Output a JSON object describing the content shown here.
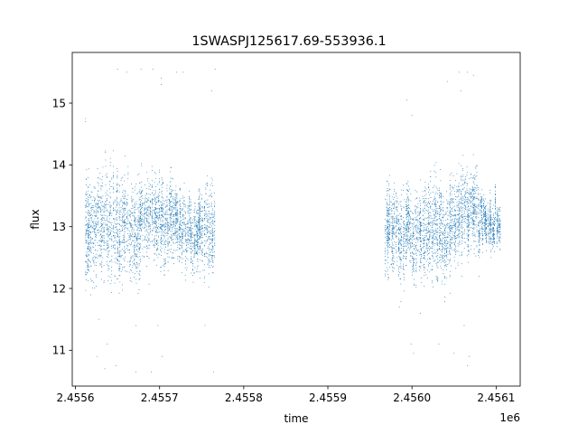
{
  "chart_data": {
    "type": "scatter",
    "title": "1SWASPJ125617.69-553936.1",
    "xlabel": "time",
    "ylabel": "flux",
    "x_offset_label": "1e6",
    "xlim": [
      2455596.2,
      2456128.6
    ],
    "ylim": [
      10.42,
      15.82
    ],
    "x_ticks": [
      {
        "value": 2455600,
        "label": "2.4556"
      },
      {
        "value": 2455700,
        "label": "2.4557"
      },
      {
        "value": 2455800,
        "label": "2.4558"
      },
      {
        "value": 2455900,
        "label": "2.4559"
      },
      {
        "value": 2456000,
        "label": "2.4560"
      },
      {
        "value": 2456100,
        "label": "2.4561"
      }
    ],
    "y_ticks": [
      {
        "value": 11,
        "label": "11"
      },
      {
        "value": 12,
        "label": "12"
      },
      {
        "value": 13,
        "label": "13"
      },
      {
        "value": 14,
        "label": "14"
      },
      {
        "value": 15,
        "label": "15"
      }
    ],
    "grid": false,
    "legend": "none",
    "series": [
      {
        "color": "#1f77b4",
        "observing_segments": [
          {
            "x_start": 2455612,
            "x_end": 2455677,
            "y_center": 13.0,
            "y_spread": 0.7
          },
          {
            "x_start": 2455677,
            "x_end": 2455716,
            "y_center": 13.1,
            "y_spread": 0.55
          },
          {
            "x_start": 2455716,
            "x_end": 2455748,
            "y_center": 12.95,
            "y_spread": 0.45
          },
          {
            "x_start": 2455748,
            "x_end": 2455766,
            "y_center": 13.0,
            "y_spread": 0.6
          },
          {
            "x_start": 2455968,
            "x_end": 2456010,
            "y_center": 12.9,
            "y_spread": 0.55
          },
          {
            "x_start": 2456010,
            "x_end": 2456045,
            "y_center": 12.9,
            "y_spread": 0.65
          },
          {
            "x_start": 2456045,
            "x_end": 2456080,
            "y_center": 13.2,
            "y_spread": 0.55
          },
          {
            "x_start": 2456080,
            "x_end": 2456106,
            "y_center": 13.1,
            "y_spread": 0.3
          }
        ],
        "points": [
          [
            2455612,
            14.7
          ],
          [
            2455612,
            14.75
          ],
          [
            2455650,
            15.55
          ],
          [
            2455661,
            15.5
          ],
          [
            2455678,
            15.55
          ],
          [
            2455692,
            15.55
          ],
          [
            2455702,
            15.4
          ],
          [
            2455702,
            15.3
          ],
          [
            2455720,
            15.5
          ],
          [
            2455728,
            15.5
          ],
          [
            2455762,
            15.2
          ],
          [
            2455766,
            15.55
          ],
          [
            2455626,
            10.9
          ],
          [
            2455635,
            10.7
          ],
          [
            2455648,
            10.75
          ],
          [
            2455672,
            10.65
          ],
          [
            2455690,
            10.65
          ],
          [
            2455703,
            10.9
          ],
          [
            2455764,
            10.65
          ],
          [
            2455754,
            11.4
          ],
          [
            2455672,
            11.4
          ],
          [
            2455698,
            11.4
          ],
          [
            2455628,
            11.5
          ],
          [
            2455638,
            11.1
          ],
          [
            2455994,
            15.05
          ],
          [
            2456042,
            15.35
          ],
          [
            2456056,
            15.5
          ],
          [
            2456066,
            15.5
          ],
          [
            2456073,
            15.45
          ],
          [
            2456058,
            15.2
          ],
          [
            2456000,
            14.8
          ],
          [
            2456002,
            10.95
          ],
          [
            2455999,
            11.1
          ],
          [
            2456050,
            10.95
          ],
          [
            2456066,
            10.75
          ],
          [
            2456068,
            10.9
          ],
          [
            2456032,
            11.1
          ],
          [
            2456062,
            11.4
          ],
          [
            2456094,
            12.5
          ],
          [
            2456080,
            12.2
          ],
          [
            2455968,
            12.4
          ],
          [
            2456010,
            11.6
          ],
          [
            2455985,
            11.7
          ],
          [
            2455740,
            12.1
          ]
        ]
      }
    ]
  }
}
